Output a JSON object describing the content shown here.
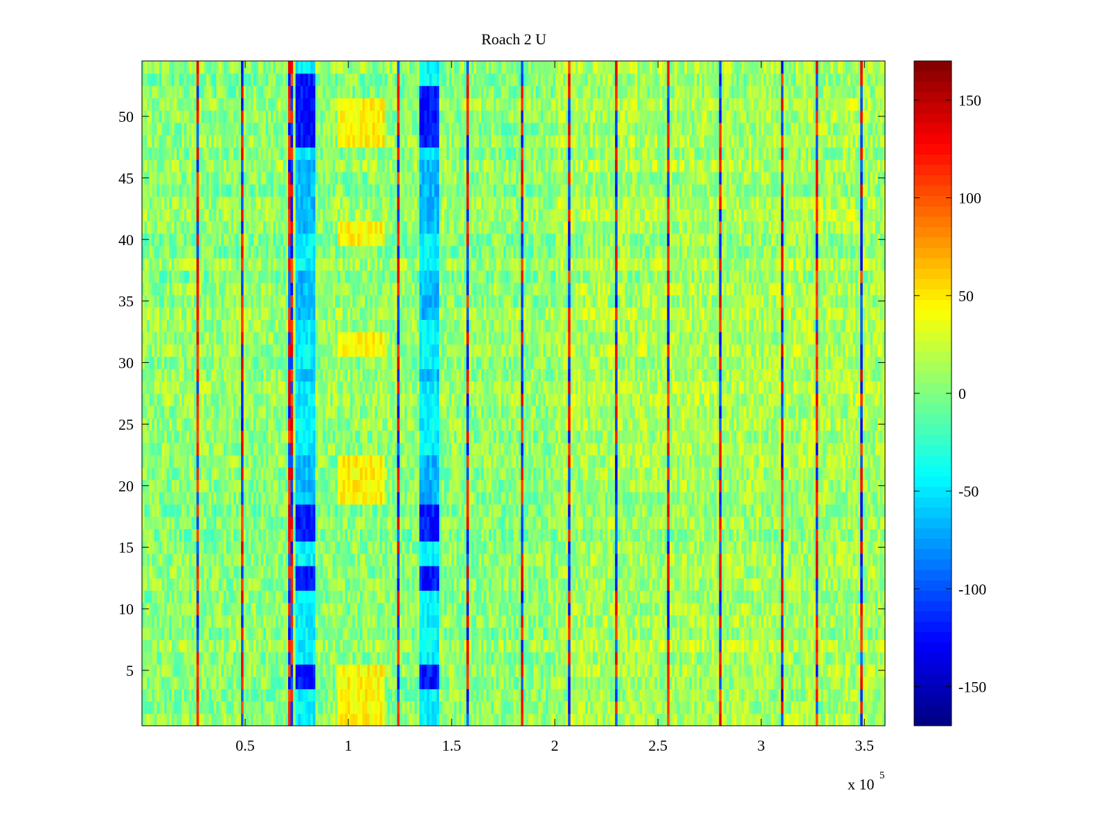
{
  "chart_data": {
    "type": "heatmap",
    "title": "Roach 2 U",
    "xlabel": "",
    "ylabel": "",
    "x_multiplier_label": "x 10",
    "x_multiplier_exponent": "5",
    "xlim": [
      0.0,
      3.6
    ],
    "ylim": [
      0.5,
      54.5
    ],
    "rows": 54,
    "x_ticks": [
      0.5,
      1,
      1.5,
      2,
      2.5,
      3,
      3.5
    ],
    "x_tick_labels": [
      "0.5",
      "1",
      "1.5",
      "2",
      "2.5",
      "3",
      "3.5"
    ],
    "y_ticks": [
      5,
      10,
      15,
      20,
      25,
      30,
      35,
      40,
      45,
      50
    ],
    "y_tick_labels": [
      "5",
      "10",
      "15",
      "20",
      "25",
      "30",
      "35",
      "40",
      "45",
      "50"
    ],
    "colorbar": {
      "colormap": "jet",
      "clim": [
        -170,
        170
      ],
      "ticks": [
        150,
        100,
        50,
        0,
        -50,
        -100,
        -150
      ],
      "tick_labels": [
        "150",
        "100",
        "50",
        "0",
        "-50",
        "-100",
        "-150"
      ]
    },
    "background_level": 5,
    "features": [
      {
        "description": "strong negative band",
        "x_range": [
          0.75,
          0.84
        ],
        "value": -120,
        "rows_strong": [
          [
            48,
            53
          ],
          [
            16,
            18
          ],
          [
            12,
            13
          ],
          [
            4,
            5
          ]
        ],
        "rows_moderate": [
          [
            41,
            46
          ],
          [
            34,
            37
          ],
          [
            19,
            22
          ],
          [
            29,
            29
          ]
        ]
      },
      {
        "description": "strong negative band",
        "x_range": [
          1.35,
          1.44
        ],
        "value": -120,
        "rows_strong": [
          [
            48,
            52
          ],
          [
            16,
            18
          ],
          [
            12,
            13
          ],
          [
            4,
            5
          ]
        ],
        "rows_moderate": [
          [
            41,
            46
          ],
          [
            34,
            37
          ],
          [
            19,
            22
          ],
          [
            29,
            29
          ]
        ]
      },
      {
        "description": "positive band",
        "x_range": [
          0.95,
          1.18
        ],
        "value": 45,
        "rows_strong": [
          [
            1,
            5
          ],
          [
            19,
            22
          ],
          [
            31,
            32
          ],
          [
            40,
            41
          ],
          [
            48,
            51
          ]
        ]
      }
    ],
    "vertical_lines": [
      0.27,
      0.49,
      0.72,
      1.24,
      1.58,
      1.84,
      2.07,
      2.3,
      2.55,
      2.8,
      3.1,
      3.27,
      3.49
    ]
  }
}
